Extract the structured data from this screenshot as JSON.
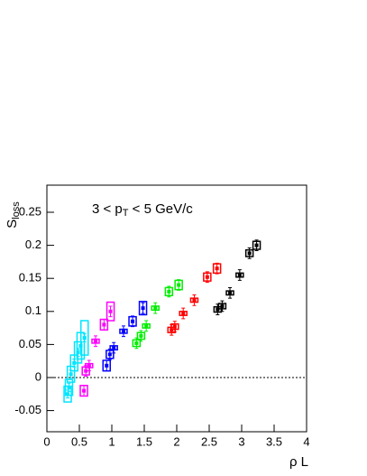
{
  "chart_data": {
    "type": "scatter",
    "title_parts": [
      "3 < p",
      "T",
      " < 5 GeV/c"
    ],
    "y_label_parts": [
      "S",
      "loss"
    ],
    "x_label": "ρ L",
    "xlim": [
      0,
      4
    ],
    "ylim": [
      -0.082,
      0.291
    ],
    "xticks": [
      0,
      0.5,
      1,
      1.5,
      2,
      2.5,
      3,
      3.5,
      4
    ],
    "yticks": [
      -0.05,
      0,
      0.05,
      0.1,
      0.15,
      0.2,
      0.25
    ],
    "reference_line": 0,
    "series": [
      {
        "color": "#00e5ff",
        "x": [
          0.32,
          0.34,
          0.37,
          0.42,
          0.48,
          0.52,
          0.58
        ],
        "values": [
          -0.025,
          -0.015,
          0.005,
          0.022,
          0.038,
          0.048,
          0.06
        ],
        "errors": [
          0.006,
          0.006,
          0.006,
          0.006,
          0.006,
          0.006,
          0.006
        ],
        "sys": [
          0.012,
          0.012,
          0.012,
          0.012,
          0.016,
          0.02,
          0.026
        ]
      },
      {
        "color": "#ff00ff",
        "x": [
          0.57,
          0.6,
          0.65,
          0.75,
          0.88,
          0.98
        ],
        "values": [
          -0.02,
          0.01,
          0.018,
          0.055,
          0.08,
          0.1
        ],
        "errors": [
          0.008,
          0.008,
          0.008,
          0.008,
          0.008,
          0.008
        ],
        "sys": [
          0.008,
          0.006,
          0.003,
          0.003,
          0.008,
          0.014
        ]
      },
      {
        "color": "#0000ff",
        "x": [
          0.92,
          0.97,
          1.03,
          1.18,
          1.32,
          1.48
        ],
        "values": [
          0.018,
          0.035,
          0.045,
          0.07,
          0.085,
          0.105
        ],
        "errors": [
          0.008,
          0.008,
          0.008,
          0.008,
          0.008,
          0.008
        ],
        "sys": [
          0.008,
          0.006,
          0.003,
          0.003,
          0.007,
          0.01
        ]
      },
      {
        "color": "#00ee00",
        "x": [
          1.38,
          1.45,
          1.53,
          1.67,
          1.88,
          2.03
        ],
        "values": [
          0.052,
          0.063,
          0.078,
          0.105,
          0.13,
          0.14
        ],
        "errors": [
          0.008,
          0.008,
          0.008,
          0.008,
          0.008,
          0.008
        ],
        "sys": [
          0.005,
          0.005,
          0.003,
          0.003,
          0.006,
          0.007
        ]
      },
      {
        "color": "#ff0000",
        "x": [
          1.92,
          1.97,
          2.1,
          2.27,
          2.47,
          2.62
        ],
        "values": [
          0.072,
          0.077,
          0.097,
          0.117,
          0.152,
          0.165
        ],
        "errors": [
          0.008,
          0.008,
          0.008,
          0.008,
          0.008,
          0.008
        ],
        "sys": [
          0.004,
          0.004,
          0.003,
          0.003,
          0.006,
          0.007
        ]
      },
      {
        "color": "#000000",
        "x": [
          2.63,
          2.7,
          2.82,
          2.97,
          3.12,
          3.23
        ],
        "values": [
          0.103,
          0.108,
          0.128,
          0.155,
          0.188,
          0.2
        ],
        "errors": [
          0.008,
          0.008,
          0.008,
          0.008,
          0.008,
          0.008
        ],
        "sys": [
          0.004,
          0.004,
          0.003,
          0.003,
          0.005,
          0.006
        ]
      }
    ]
  }
}
